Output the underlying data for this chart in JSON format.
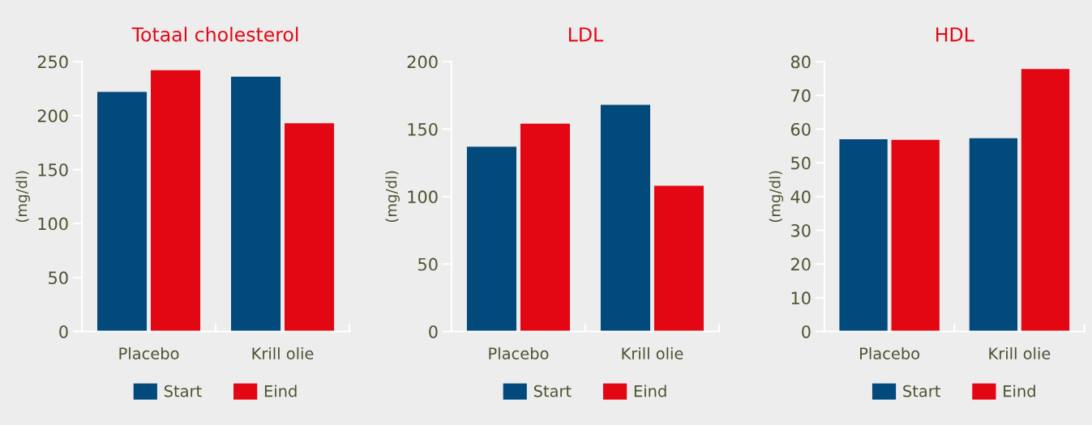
{
  "chart_data": [
    {
      "type": "bar",
      "title": "Totaal cholesterol",
      "ylabel": "(mg/dl)",
      "categories": [
        "Placebo",
        "Krill olie"
      ],
      "series": [
        {
          "name": "Start",
          "color": "#02497c",
          "values": [
            222,
            236
          ]
        },
        {
          "name": "Eind",
          "color": "#e30613",
          "values": [
            242,
            193
          ]
        }
      ],
      "ylim": [
        0,
        250
      ],
      "yticks": [
        0,
        50,
        100,
        150,
        200,
        250
      ],
      "grid": false,
      "legend": "bottom"
    },
    {
      "type": "bar",
      "title": "LDL",
      "ylabel": "(mg/dl)",
      "categories": [
        "Placebo",
        "Krill olie"
      ],
      "series": [
        {
          "name": "Start",
          "color": "#02497c",
          "values": [
            137,
            168
          ]
        },
        {
          "name": "Eind",
          "color": "#e30613",
          "values": [
            154,
            108
          ]
        }
      ],
      "ylim": [
        0,
        200
      ],
      "yticks": [
        0,
        50,
        100,
        150,
        200
      ],
      "grid": false,
      "legend": "bottom"
    },
    {
      "type": "bar",
      "title": "HDL",
      "ylabel": "(mg/dl)",
      "categories": [
        "Placebo",
        "Krill olie"
      ],
      "series": [
        {
          "name": "Start",
          "color": "#02497c",
          "values": [
            57,
            57.3
          ]
        },
        {
          "name": "Eind",
          "color": "#e30613",
          "values": [
            56.8,
            77.8
          ]
        }
      ],
      "ylim": [
        0,
        80
      ],
      "yticks": [
        0,
        10,
        20,
        30,
        40,
        50,
        60,
        70,
        80
      ],
      "grid": false,
      "legend": "bottom"
    }
  ]
}
